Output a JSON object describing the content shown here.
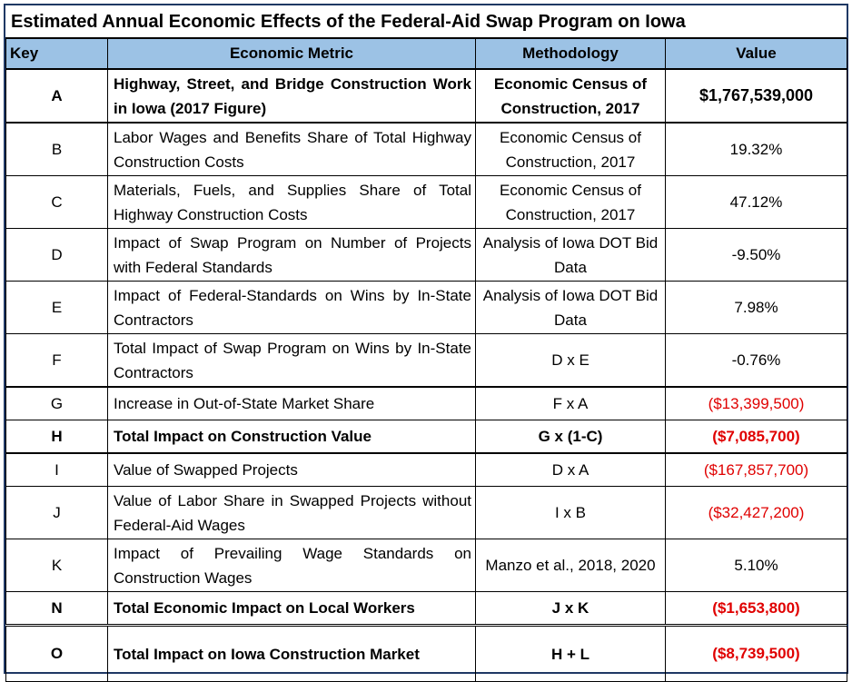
{
  "title": "Estimated Annual Economic Effects of the Federal-Aid Swap Program on Iowa",
  "headers": {
    "key": "Key",
    "metric": "Economic Metric",
    "methodology": "Methodology",
    "value": "Value"
  },
  "rows": [
    {
      "key": "A",
      "metric": "Highway, Street, and Bridge Construction Work in Iowa (2017 Figure)",
      "methodology": "Economic Census of Construction, 2017",
      "value": "$1,767,539,000"
    },
    {
      "key": "B",
      "metric": "Labor Wages and Benefits Share of Total Highway Construction Costs",
      "methodology": "Economic Census of Construction, 2017",
      "value": "19.32%"
    },
    {
      "key": "C",
      "metric": "Materials, Fuels, and Supplies Share of Total Highway Construction Costs",
      "methodology": "Economic Census of Construction, 2017",
      "value": "47.12%"
    },
    {
      "key": "D",
      "metric": "Impact of Swap Program on Number of Projects with Federal Standards",
      "methodology": "Analysis of Iowa DOT Bid Data",
      "value": "-9.50%"
    },
    {
      "key": "E",
      "metric": "Impact of Federal-Standards on Wins by In-State Contractors",
      "methodology": "Analysis of Iowa DOT Bid Data",
      "value": "7.98%"
    },
    {
      "key": "F",
      "metric": "Total Impact of Swap Program on Wins by In-State Contractors",
      "methodology": "D x E",
      "value": "-0.76%"
    },
    {
      "key": "G",
      "metric": "Increase in Out-of-State Market Share",
      "methodology": "F x A",
      "value": "($13,399,500)"
    },
    {
      "key": "H",
      "metric": "Total Impact on Construction Value",
      "methodology": "G x (1-C)",
      "value": "($7,085,700)"
    },
    {
      "key": "I",
      "metric": "Value of Swapped Projects",
      "methodology": "D x A",
      "value": "($167,857,700)"
    },
    {
      "key": "J",
      "metric": "Value of Labor Share in Swapped Projects without Federal-Aid Wages",
      "methodology": "I x B",
      "value": "($32,427,200)"
    },
    {
      "key": "K",
      "metric": "Impact of Prevailing Wage Standards on Construction Wages",
      "methodology": "Manzo et al., 2018, 2020",
      "value": "5.10%"
    },
    {
      "key": "N",
      "metric": "Total Economic Impact on Local Workers",
      "methodology": "J x K",
      "value": "($1,653,800)"
    },
    {
      "key": "O",
      "metric": "Total Impact on Iowa Construction Market",
      "methodology": "H + L",
      "value": "($8,739,500)"
    }
  ],
  "colors": {
    "header_bg": "#9cc2e5",
    "negative": "#e00000",
    "frame": "#1f3864"
  }
}
